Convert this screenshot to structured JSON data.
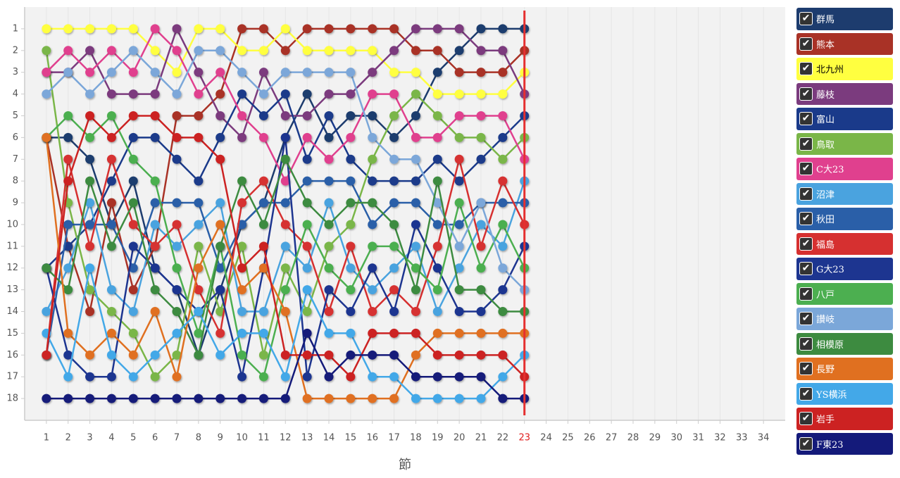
{
  "chart_data": {
    "type": "line",
    "x_label": "節",
    "xlim": [
      0,
      35
    ],
    "ylim": [
      0,
      19
    ],
    "y_inverted": true,
    "highlight": 23,
    "xticks": [
      1,
      2,
      3,
      4,
      5,
      6,
      7,
      8,
      9,
      10,
      11,
      12,
      13,
      14,
      15,
      16,
      17,
      18,
      19,
      20,
      21,
      22,
      23,
      24,
      25,
      26,
      27,
      28,
      29,
      30,
      31,
      32,
      33,
      34
    ],
    "yticks": [
      1,
      2,
      3,
      4,
      5,
      6,
      7,
      8,
      9,
      10,
      11,
      12,
      13,
      14,
      15,
      16,
      17,
      18
    ],
    "x": [
      1,
      2,
      3,
      4,
      5,
      6,
      7,
      8,
      9,
      10,
      11,
      12,
      13,
      14,
      15,
      16,
      17,
      18,
      19,
      20,
      21,
      22,
      23
    ],
    "series": [
      {
        "name": "群馬",
        "color": "#1d3c6e",
        "values": [
          6,
          6,
          7,
          10,
          8,
          12,
          13,
          16,
          13,
          10,
          9,
          6,
          4,
          6,
          5,
          5,
          6,
          5,
          3,
          2,
          1,
          1,
          1
        ]
      },
      {
        "name": "熊本",
        "color": "#a93226",
        "values": [
          6,
          11,
          14,
          9,
          13,
          11,
          5,
          5,
          4,
          1,
          1,
          2,
          1,
          1,
          1,
          1,
          1,
          2,
          2,
          3,
          3,
          3,
          2
        ]
      },
      {
        "name": "北九州",
        "color": "#ffff40",
        "values": [
          1,
          1,
          1,
          1,
          1,
          2,
          3,
          1,
          1,
          2,
          2,
          1,
          2,
          2,
          2,
          2,
          3,
          3,
          4,
          4,
          4,
          4,
          3
        ]
      },
      {
        "name": "藤枝",
        "color": "#7b3b7e",
        "values": [
          3,
          3,
          2,
          4,
          4,
          4,
          1,
          3,
          5,
          6,
          3,
          5,
          5,
          4,
          4,
          3,
          2,
          1,
          1,
          1,
          2,
          2,
          4
        ]
      },
      {
        "name": "富山",
        "color": "#1a3a8a",
        "values": [
          12,
          11,
          10,
          8,
          6,
          6,
          7,
          8,
          6,
          4,
          5,
          4,
          7,
          5,
          7,
          8,
          8,
          8,
          7,
          8,
          7,
          6,
          5
        ]
      },
      {
        "name": "鳥取",
        "color": "#7ab648",
        "values": [
          2,
          9,
          13,
          14,
          15,
          17,
          16,
          11,
          14,
          11,
          16,
          12,
          14,
          11,
          10,
          7,
          5,
          4,
          5,
          6,
          6,
          7,
          6
        ]
      },
      {
        "name": "C大23",
        "color": "#e0408e",
        "values": [
          3,
          2,
          3,
          2,
          3,
          1,
          2,
          4,
          3,
          5,
          6,
          8,
          6,
          7,
          6,
          4,
          4,
          6,
          6,
          5,
          5,
          5,
          7
        ]
      },
      {
        "name": "沼津",
        "color": "#4aa3df",
        "values": [
          14,
          12,
          9,
          13,
          14,
          10,
          11,
          10,
          9,
          14,
          14,
          11,
          12,
          9,
          12,
          13,
          12,
          11,
          14,
          12,
          10,
          11,
          8
        ]
      },
      {
        "name": "秋田",
        "color": "#2a5fa8",
        "values": [
          16,
          10,
          10,
          10,
          12,
          9,
          9,
          9,
          12,
          10,
          9,
          9,
          8,
          8,
          8,
          10,
          9,
          9,
          10,
          10,
          9,
          9,
          9
        ]
      },
      {
        "name": "福島",
        "color": "#d63030",
        "values": [
          16,
          7,
          11,
          7,
          10,
          11,
          10,
          13,
          15,
          9,
          8,
          10,
          11,
          14,
          11,
          14,
          13,
          14,
          11,
          7,
          11,
          8,
          10
        ]
      },
      {
        "name": "G大23",
        "color": "#1d3590",
        "values": [
          12,
          16,
          17,
          17,
          11,
          12,
          13,
          14,
          13,
          17,
          12,
          6,
          17,
          13,
          14,
          12,
          14,
          10,
          12,
          14,
          14,
          13,
          11
        ]
      },
      {
        "name": "八戸",
        "color": "#4caf50",
        "values": [
          6,
          5,
          6,
          5,
          7,
          8,
          12,
          15,
          11,
          16,
          17,
          13,
          10,
          12,
          13,
          11,
          11,
          12,
          13,
          9,
          12,
          10,
          12
        ]
      },
      {
        "name": "讃岐",
        "color": "#7ba7d9",
        "values": [
          4,
          3,
          4,
          3,
          2,
          3,
          4,
          2,
          2,
          3,
          4,
          3,
          3,
          3,
          3,
          6,
          7,
          7,
          9,
          11,
          9,
          12,
          13
        ]
      },
      {
        "name": "相模原",
        "color": "#3d8b40",
        "values": [
          12,
          13,
          8,
          11,
          9,
          13,
          14,
          16,
          11,
          8,
          10,
          7,
          9,
          10,
          9,
          9,
          10,
          13,
          8,
          13,
          13,
          14,
          14
        ]
      },
      {
        "name": "長野",
        "color": "#e07020",
        "values": [
          6,
          15,
          16,
          15,
          16,
          14,
          17,
          12,
          10,
          13,
          12,
          14,
          18,
          18,
          18,
          18,
          18,
          16,
          15,
          15,
          15,
          15,
          15
        ]
      },
      {
        "name": "YS横浜",
        "color": "#43a8e8",
        "values": [
          15,
          17,
          12,
          16,
          17,
          16,
          15,
          14,
          16,
          15,
          15,
          17,
          13,
          15,
          15,
          17,
          17,
          18,
          18,
          18,
          18,
          17,
          16
        ]
      },
      {
        "name": "岩手",
        "color": "#cc2222",
        "values": [
          16,
          8,
          5,
          6,
          5,
          5,
          6,
          6,
          7,
          12,
          11,
          16,
          16,
          16,
          17,
          15,
          15,
          15,
          16,
          16,
          16,
          16,
          17
        ]
      },
      {
        "name": "F東23",
        "color": "#141a7a",
        "values": [
          18,
          18,
          18,
          18,
          18,
          18,
          18,
          18,
          18,
          18,
          18,
          18,
          15,
          17,
          16,
          16,
          16,
          17,
          17,
          17,
          17,
          18,
          18
        ]
      }
    ]
  }
}
